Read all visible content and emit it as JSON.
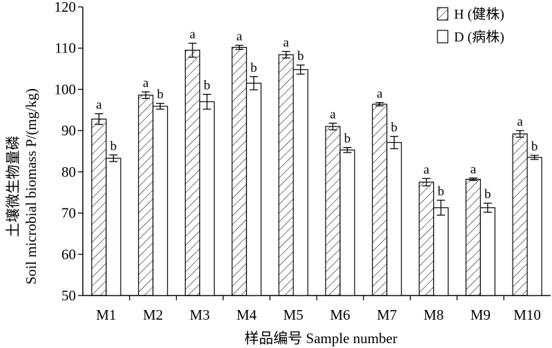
{
  "chart_data": {
    "type": "bar",
    "xlabel": "样品编号 Sample number",
    "ylabel_cn": "土壤微生物量磷",
    "ylabel_en": "Soil microbial biomass P/(mg/kg)",
    "ylim": [
      50,
      120
    ],
    "yticks": [
      50,
      60,
      70,
      80,
      90,
      100,
      110,
      120
    ],
    "categories": [
      "M1",
      "M2",
      "M3",
      "M4",
      "M5",
      "M6",
      "M7",
      "M8",
      "M9",
      "M10"
    ],
    "series": [
      {
        "name": "H (健株)",
        "pattern": "hatched",
        "values": [
          92.8,
          98.6,
          109.5,
          110.2,
          108.4,
          91.0,
          96.4,
          77.5,
          78.2,
          89.2
        ],
        "errors": [
          1.3,
          0.8,
          1.7,
          0.5,
          0.8,
          0.8,
          0.4,
          0.9,
          0.3,
          0.8
        ],
        "sig": [
          "a",
          "a",
          "a",
          "a",
          "a",
          "a",
          "a",
          "a",
          "a",
          "a"
        ]
      },
      {
        "name": "D (病株)",
        "pattern": "open",
        "values": [
          83.3,
          95.9,
          97.0,
          101.5,
          104.8,
          85.3,
          87.1,
          71.3,
          71.3,
          83.5
        ],
        "errors": [
          0.8,
          0.7,
          1.8,
          1.6,
          1.1,
          0.6,
          1.5,
          1.8,
          1.1,
          0.5
        ],
        "sig": [
          "b",
          "b",
          "b",
          "b",
          "b",
          "b",
          "b",
          "b",
          "b",
          "b"
        ]
      }
    ],
    "legend_position": "top-right",
    "grid": false
  }
}
